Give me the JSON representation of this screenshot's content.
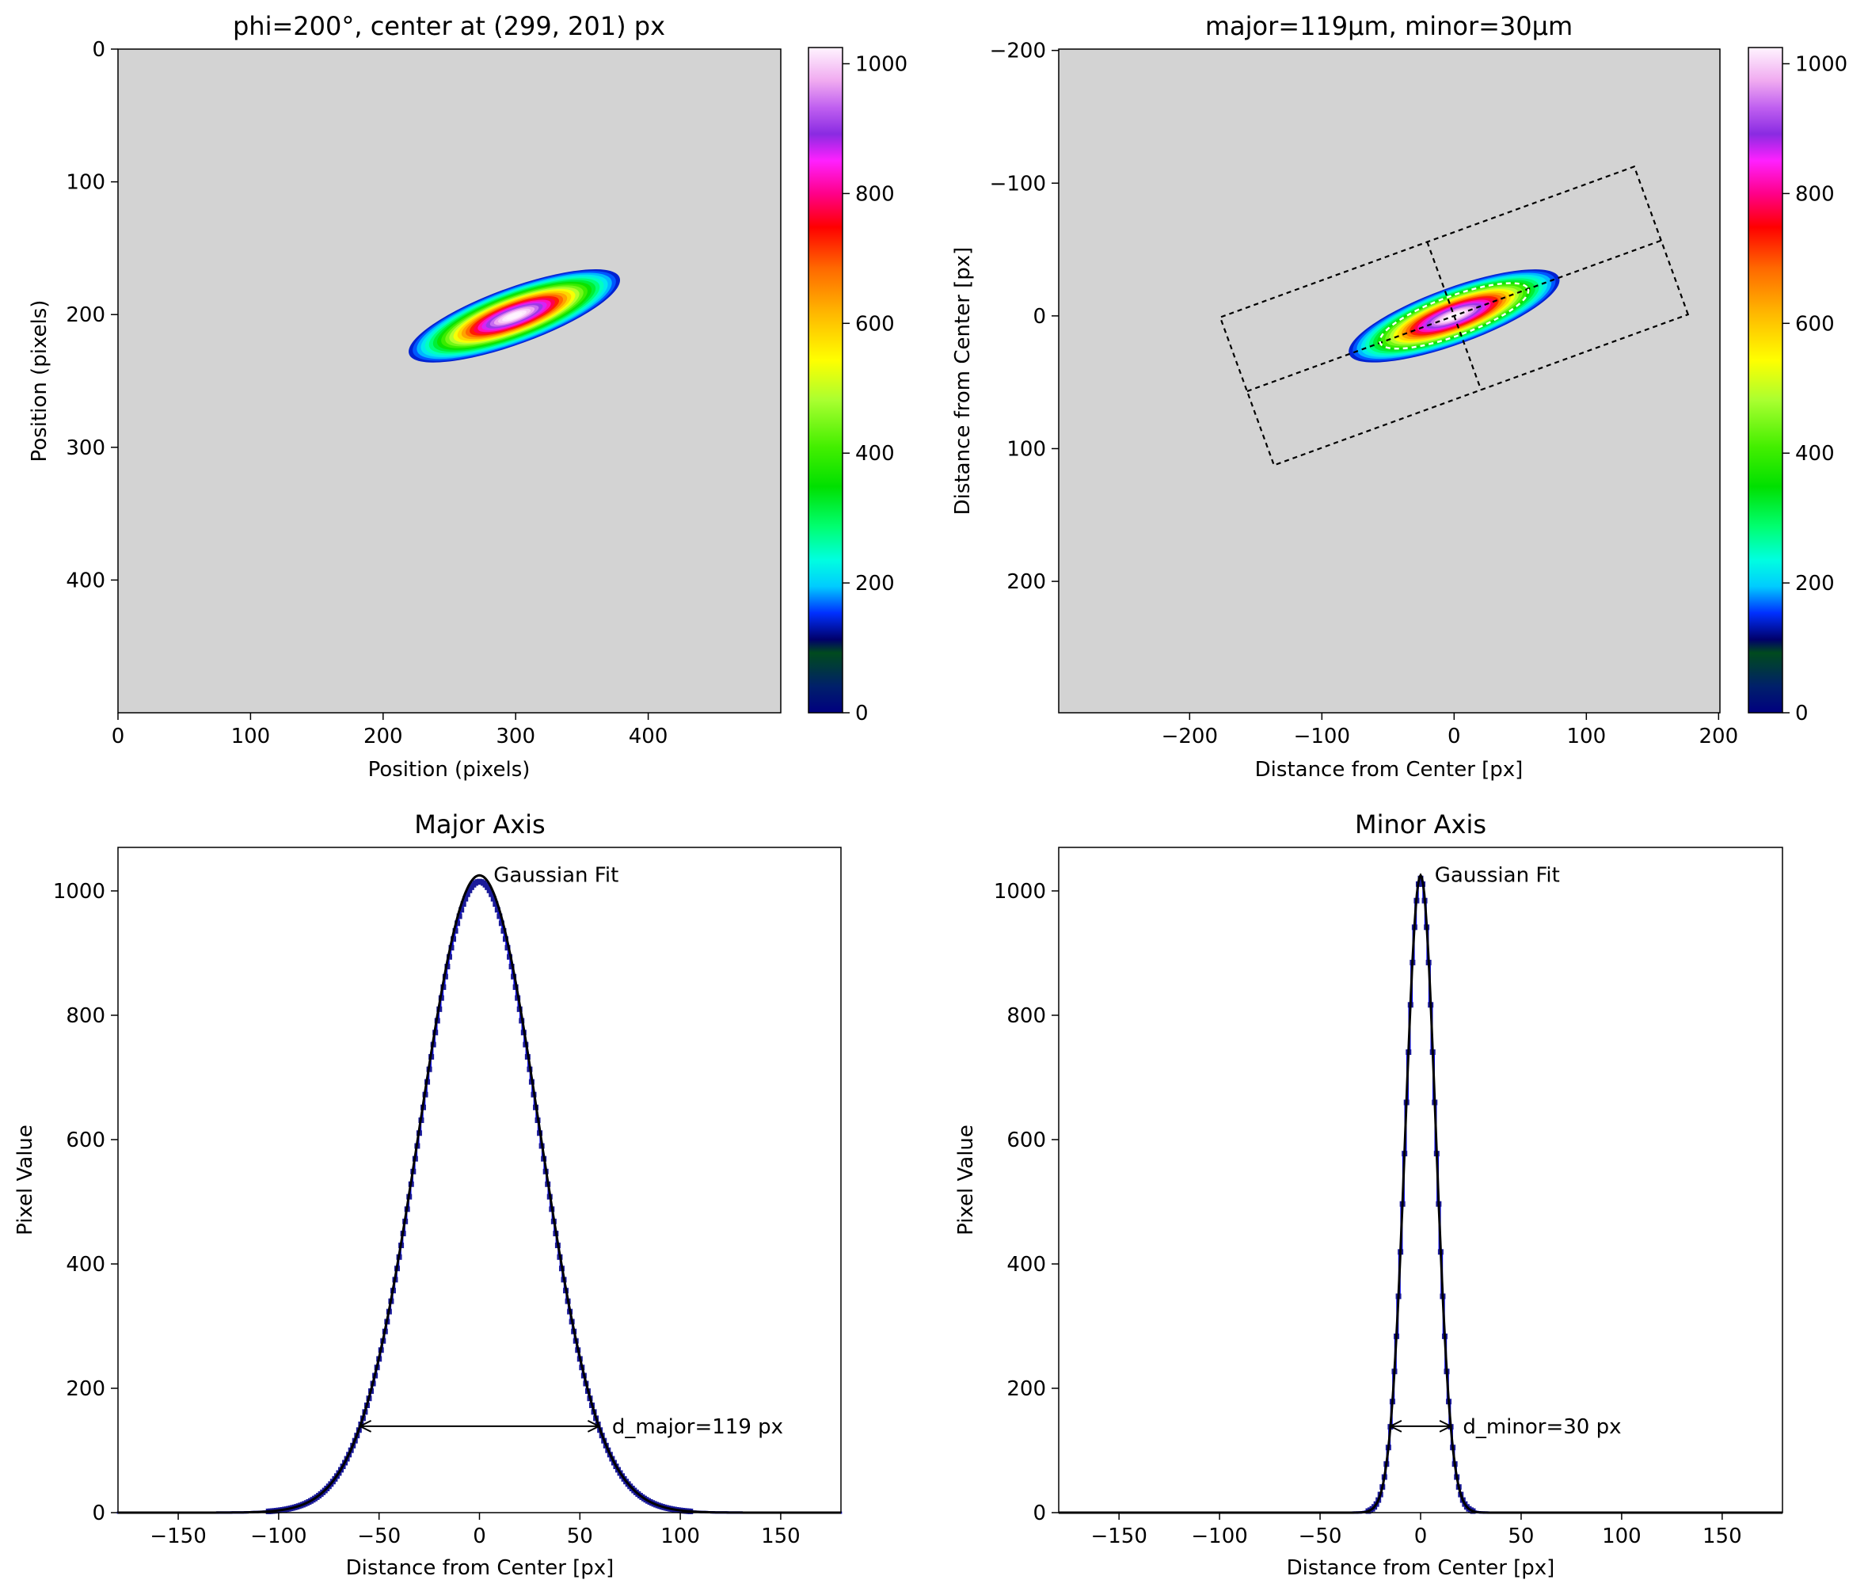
{
  "chart_data": [
    {
      "type": "heatmap",
      "title": "phi=200°, center at (299, 201) px",
      "xlabel": "Position (pixels)",
      "ylabel": "Position (pixels)",
      "xlim": [
        0,
        500
      ],
      "ylim": [
        500,
        0
      ],
      "xticks": [
        0,
        100,
        200,
        300,
        400
      ],
      "yticks": [
        0,
        100,
        200,
        300,
        400
      ],
      "background_color": "#d3d3d3",
      "colormap": "gist_ncar",
      "colorbar_range": [
        0,
        1025
      ],
      "colorbar_ticks": [
        0,
        200,
        400,
        600,
        800,
        1000
      ],
      "beam": {
        "center_x": 299,
        "center_y": 201,
        "phi_deg": 200,
        "d_major": 119,
        "d_minor": 30,
        "peak": 1025
      }
    },
    {
      "type": "heatmap",
      "title": "major=119µm, minor=30µm",
      "xlabel": "Distance from Center [px]",
      "ylabel": "Distance from Center [px]",
      "xlim": [
        -299,
        201
      ],
      "ylim": [
        299,
        -201
      ],
      "xticks": [
        -200,
        -100,
        0,
        100,
        200
      ],
      "yticks": [
        -200,
        -100,
        0,
        100,
        200
      ],
      "background_color": "#d3d3d3",
      "colormap": "gist_ncar",
      "colorbar_range": [
        0,
        1025
      ],
      "colorbar_ticks": [
        0,
        200,
        400,
        600,
        800,
        1000
      ],
      "overlays": {
        "integration_rectangle": true,
        "fit_ellipse": true,
        "axis_lines": true
      }
    },
    {
      "type": "line",
      "title": "Major Axis",
      "xlabel": "Distance from Center [px]",
      "ylabel": "Pixel Value",
      "xlim": [
        -180,
        180
      ],
      "ylim": [
        0,
        1070
      ],
      "xticks": [
        -150,
        -100,
        -50,
        0,
        50,
        100,
        150
      ],
      "yticks": [
        0,
        200,
        400,
        600,
        800,
        1000
      ],
      "series": [
        {
          "color": "#0000ff",
          "style": "step",
          "peak": 1015,
          "diameter": 119,
          "x_range": [
            -180,
            180
          ]
        },
        {
          "color": "#000000",
          "style": "line",
          "peak": 1025,
          "diameter": 119
        }
      ],
      "annotations": [
        {
          "text": "Gaussian Fit",
          "x": 7,
          "y": 1025
        },
        {
          "text": "d_major=119 px",
          "x": 66,
          "y": 139,
          "arrow_from": -59.5,
          "arrow_to": 59.5
        }
      ]
    },
    {
      "type": "line",
      "title": "Minor Axis",
      "xlabel": "Distance from Center [px]",
      "ylabel": "Pixel Value",
      "xlim": [
        -180,
        180
      ],
      "ylim": [
        0,
        1070
      ],
      "xticks": [
        -150,
        -100,
        -50,
        0,
        50,
        100,
        150
      ],
      "yticks": [
        0,
        200,
        400,
        600,
        800,
        1000
      ],
      "series": [
        {
          "color": "#0000ff",
          "style": "step",
          "peak": 1020,
          "diameter": 30,
          "x_range": [
            -46,
            46
          ]
        },
        {
          "color": "#000000",
          "style": "line",
          "peak": 1025,
          "diameter": 30
        }
      ],
      "annotations": [
        {
          "text": "Gaussian Fit",
          "x": 7,
          "y": 1025
        },
        {
          "text": "d_minor=30 px",
          "x": 21,
          "y": 139,
          "arrow_from": -15,
          "arrow_to": 15
        }
      ]
    }
  ]
}
